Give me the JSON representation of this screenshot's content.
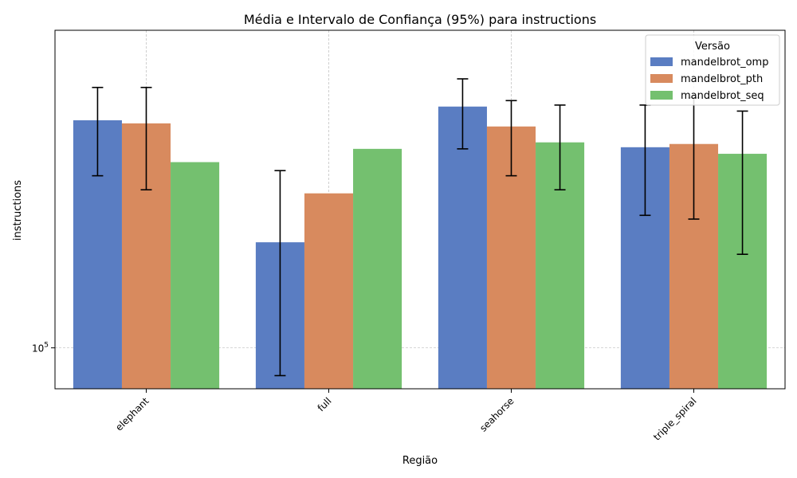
{
  "chart_data": {
    "type": "bar",
    "title": "Média e Intervalo de Confiança (95%) para instructions",
    "xlabel": "Região",
    "ylabel": "instructions",
    "yscale": "log",
    "ylim": [
      92000,
      191000
    ],
    "y_ticks": [
      {
        "value": 100000,
        "label": "10^5"
      }
    ],
    "categories": [
      "elephant",
      "full",
      "seahorse",
      "triple_spiral"
    ],
    "grid": true,
    "legend": {
      "title": "Versão",
      "position": "top-right"
    },
    "series": [
      {
        "name": "mandelbrot_omp",
        "color": "#5a7dc2",
        "values": [
          159000,
          124000,
          163500,
          150500
        ],
        "ci_low": [
          142000,
          94500,
          150000,
          131000
        ],
        "ci_high": [
          170000,
          143500,
          173000,
          164000
        ]
      },
      {
        "name": "mandelbrot_pth",
        "color": "#d88a5e",
        "values": [
          158000,
          137000,
          157000,
          151500
        ],
        "ci_low": [
          138000,
          null,
          142000,
          130000
        ],
        "ci_high": [
          170000,
          null,
          165500,
          166500
        ]
      },
      {
        "name": "mandelbrot_seq",
        "color": "#74c06f",
        "values": [
          146000,
          150000,
          152000,
          148500
        ],
        "ci_low": [
          null,
          null,
          138000,
          121000
        ],
        "ci_high": [
          null,
          null,
          164000,
          162000
        ]
      }
    ]
  }
}
